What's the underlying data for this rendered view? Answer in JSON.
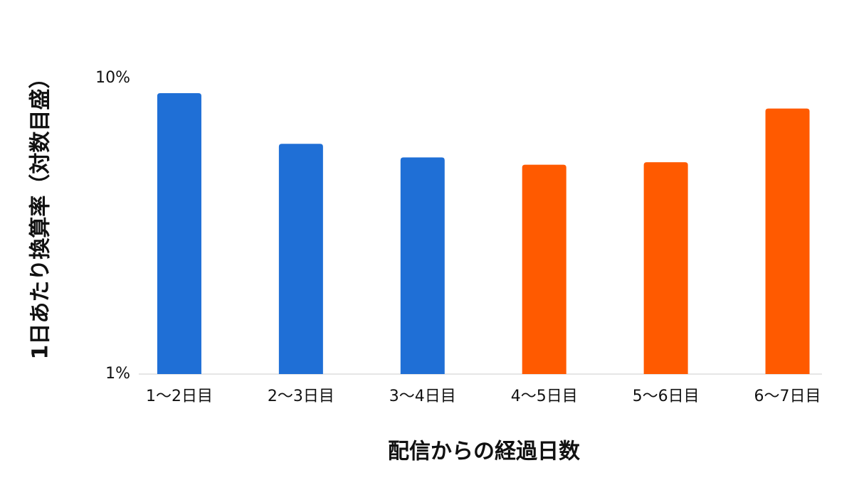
{
  "chart_data": {
    "type": "bar",
    "x_label": "配信からの経過日数",
    "y_label": "1日あたり換算率（対数目盛）",
    "categories": [
      "1〜2日目",
      "2〜3日目",
      "3〜4日目",
      "4〜5日目",
      "5〜6日目",
      "6〜7日目"
    ],
    "values": [
      8.9,
      6.0,
      5.4,
      5.1,
      5.2,
      7.9
    ],
    "colors": [
      "#1f6fd6",
      "#1f6fd6",
      "#1f6fd6",
      "#ff5a00",
      "#ff5a00",
      "#ff5a00"
    ],
    "yscale": "log",
    "ylim": [
      1,
      10
    ],
    "yticks": [
      {
        "value": 1,
        "label": "1%"
      },
      {
        "value": 10,
        "label": "10%"
      }
    ],
    "grid": false
  }
}
